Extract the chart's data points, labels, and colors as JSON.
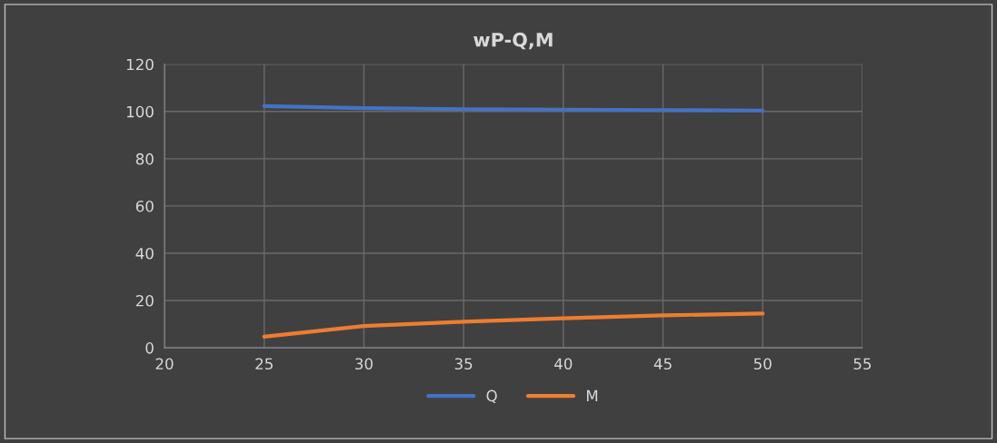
{
  "chart_data": {
    "type": "line",
    "title": "wP-Q,M",
    "x": [
      25,
      30,
      35,
      40,
      45,
      50
    ],
    "series": [
      {
        "name": "Q",
        "color": "#4472c4",
        "values": [
          102.3,
          101.4,
          101.0,
          100.8,
          100.6,
          100.4
        ]
      },
      {
        "name": "M",
        "color": "#ed7d31",
        "values": [
          4.7,
          9.2,
          11.0,
          12.5,
          13.7,
          14.5
        ]
      }
    ],
    "xlim": [
      20,
      55
    ],
    "xticks": [
      20,
      25,
      30,
      35,
      40,
      45,
      50,
      55
    ],
    "ylim": [
      0,
      120
    ],
    "yticks": [
      0,
      20,
      40,
      60,
      80,
      100,
      120
    ],
    "grid": true,
    "legend": "bottom",
    "marker": "none",
    "line_style": "solid"
  }
}
